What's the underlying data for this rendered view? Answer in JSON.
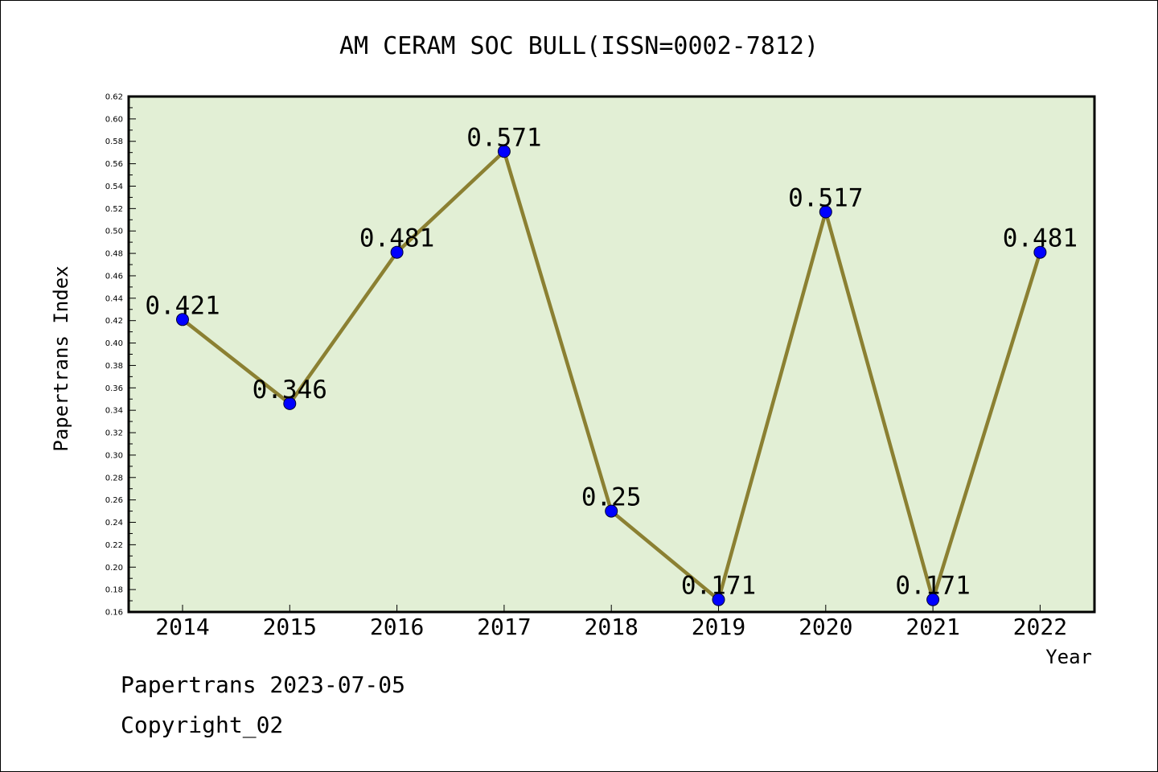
{
  "chart_data": {
    "type": "line",
    "title": "AM CERAM SOC BULL(ISSN=0002-7812)",
    "xlabel": "Year",
    "ylabel": "Papertrans Index",
    "categories": [
      "2014",
      "2015",
      "2016",
      "2017",
      "2018",
      "2019",
      "2020",
      "2021",
      "2022"
    ],
    "values": [
      0.421,
      0.346,
      0.481,
      0.571,
      0.25,
      0.171,
      0.517,
      0.171,
      0.481
    ],
    "data_labels": [
      "0.421",
      "0.346",
      "0.481",
      "0.571",
      "0.25",
      "0.171",
      "0.517",
      "0.171",
      "0.481"
    ],
    "y_ticks": [
      "0.16",
      "0.18",
      "0.20",
      "0.22",
      "0.24",
      "0.26",
      "0.28",
      "0.30",
      "0.32",
      "0.34",
      "0.36",
      "0.38",
      "0.40",
      "0.42",
      "0.44",
      "0.46",
      "0.48",
      "0.50",
      "0.52",
      "0.54",
      "0.56",
      "0.58",
      "0.60",
      "0.62"
    ],
    "ylim": [
      0.16,
      0.62
    ],
    "grid": false,
    "legend": "none",
    "colors": {
      "plot_background": "#e2efd5",
      "line": "#8b8032",
      "marker": "#0000ff",
      "axis": "#000000"
    }
  },
  "footer": {
    "line1": "Papertrans 2023-07-05",
    "line2": "Copyright_02"
  }
}
